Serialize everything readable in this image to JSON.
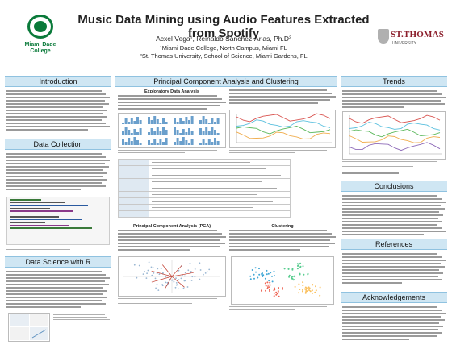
{
  "header": {
    "title": "Music Data Mining using Audio Features Extracted from Spotify",
    "authors": "Acxel Vega¹, Reinaldo Sanchez-Arias, Ph.D²",
    "affiliation_1": "¹Miami Dade College, North Campus, Miami FL",
    "affiliation_2": "²St. Thomas University, School of Science, Miami Gardens, FL",
    "logo_left_text": "Miami Dade College",
    "logo_right_text": "ST.THOMAS",
    "logo_right_sub": "UNIVERSITY"
  },
  "sections": {
    "introduction": "Introduction",
    "data_collection": "Data Collection",
    "data_science_r": "Data Science with R",
    "pca_clustering": "Principal Component Analysis and Clustering",
    "trends": "Trends",
    "conclusions": "Conclusions",
    "references": "References",
    "acknowledgements": "Acknowledgements"
  },
  "pca": {
    "eda_heading": "Exploratory Data Analysis",
    "pca_heading": "Principal Component Analysis (PCA)",
    "clustering_heading": "Clustering"
  },
  "colors": {
    "header_bar": "#cfe6f3",
    "header_border": "#8fc2e0",
    "miami_dade_green": "#0a7a3a",
    "st_thomas_red": "#8b1e2b"
  }
}
